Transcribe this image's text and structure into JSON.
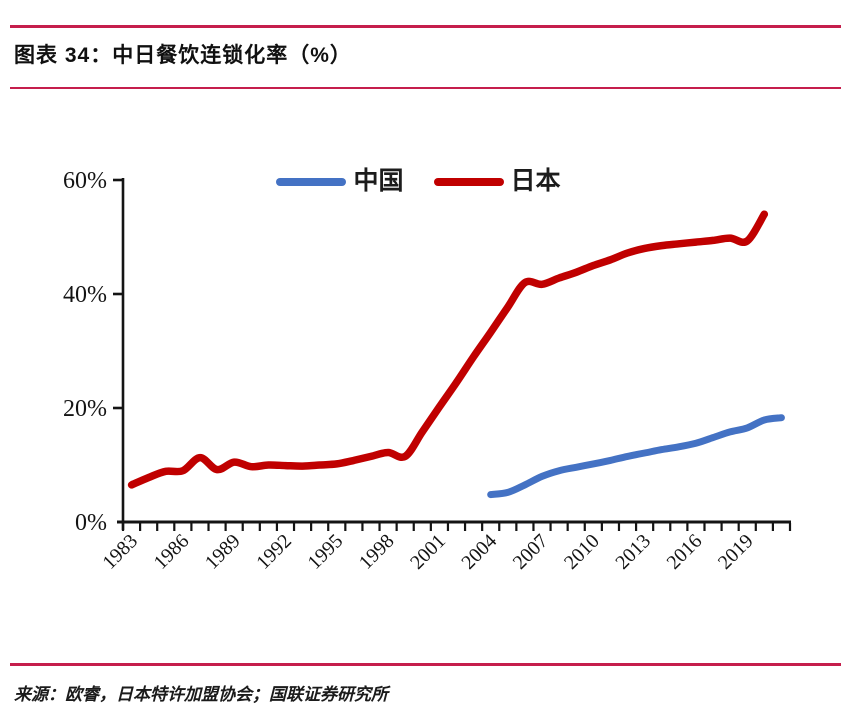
{
  "header": {
    "title": "图表 34：中日餐饮连锁化率（%）"
  },
  "footer": {
    "source": "来源：欧睿，日本特许加盟协会；国联证券研究所"
  },
  "colors": {
    "rule": "#c51e4c",
    "axis": "#141414",
    "china": "#4472c4",
    "japan": "#c00000"
  },
  "chart_data": {
    "type": "line",
    "title": "中日餐饮连锁化率（%）",
    "xlabel": "",
    "ylabel": "",
    "ylim": [
      0,
      60
    ],
    "grid": false,
    "legend_position": "top-center",
    "x_range": {
      "start": 1983,
      "end": 2021
    },
    "y_ticks": [
      {
        "label": "0%",
        "value": 0
      },
      {
        "label": "20%",
        "value": 20
      },
      {
        "label": "40%",
        "value": 40
      },
      {
        "label": "60%",
        "value": 60
      }
    ],
    "x_tick_label_years": [
      1983,
      1986,
      1989,
      1992,
      1995,
      1998,
      2001,
      2004,
      2007,
      2010,
      2013,
      2016,
      2019
    ],
    "series": [
      {
        "name": "中国",
        "color": "#4472c4",
        "start_year": 2004,
        "values": [
          4.8,
          5.2,
          6.5,
          8.0,
          9.0,
          9.6,
          10.2,
          10.8,
          11.5,
          12.1,
          12.7,
          13.2,
          13.8,
          14.8,
          15.8,
          16.5,
          17.9,
          18.3
        ]
      },
      {
        "name": "日本",
        "color": "#c00000",
        "start_year": 1983,
        "values": [
          6.5,
          7.8,
          8.9,
          9.0,
          11.3,
          9.2,
          10.5,
          9.7,
          10.0,
          9.9,
          9.8,
          10.0,
          10.2,
          10.8,
          11.5,
          12.2,
          11.5,
          15.8,
          20.2,
          24.5,
          29.0,
          33.3,
          37.7,
          42.0,
          41.7,
          42.8,
          43.8,
          45.0,
          46.0,
          47.2,
          48.0,
          48.5,
          48.8,
          49.1,
          49.4,
          49.8,
          49.3,
          54.0
        ]
      }
    ]
  }
}
